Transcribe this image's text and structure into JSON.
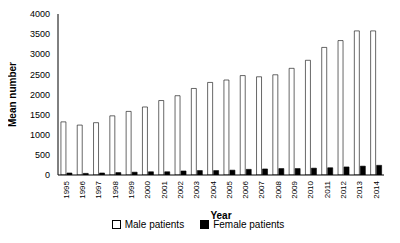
{
  "chart_data": {
    "type": "bar",
    "x_label": "Year",
    "y_label": "Mean number",
    "categories": [
      "1995",
      "1996",
      "1997",
      "1998",
      "1999",
      "2000",
      "2001",
      "2002",
      "2003",
      "2004",
      "2005",
      "2006",
      "2007",
      "2008",
      "2009",
      "2010",
      "2011",
      "2012",
      "2013",
      "2014"
    ],
    "series": [
      {
        "name": "Male patients",
        "color": "#ffffff",
        "values": [
          1320,
          1240,
          1300,
          1470,
          1580,
          1690,
          1850,
          1970,
          2150,
          2300,
          2360,
          2470,
          2440,
          2490,
          2650,
          2850,
          3170,
          3340,
          3580,
          3580
        ]
      },
      {
        "name": "Female patients",
        "color": "#000000",
        "values": [
          50,
          40,
          50,
          60,
          70,
          80,
          80,
          100,
          110,
          110,
          120,
          140,
          150,
          160,
          160,
          170,
          180,
          200,
          220,
          240
        ]
      }
    ],
    "ylim": [
      0,
      4000
    ],
    "yticks": [
      0,
      500,
      1000,
      1500,
      2000,
      2500,
      3000,
      3500,
      4000
    ],
    "grid": false,
    "legend": "bottom"
  }
}
